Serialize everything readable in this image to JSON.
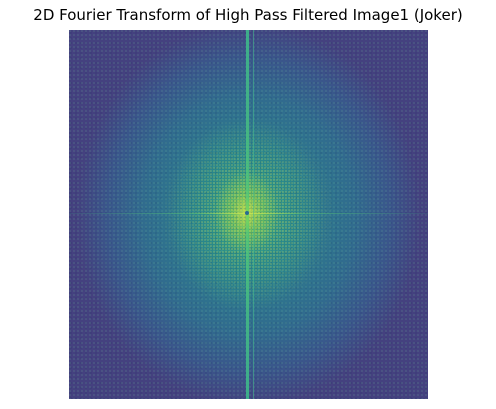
{
  "figure": {
    "title": "2D Fourier Transform of High Pass Filtered Image1 (Joker)",
    "colormap": "viridis",
    "colors": {
      "background": "#ffffff",
      "edge_purple": "#44417f",
      "mid_blue": "#316b8e",
      "center_green": "#3ab076",
      "center_yellow": "#d6e244"
    }
  }
}
